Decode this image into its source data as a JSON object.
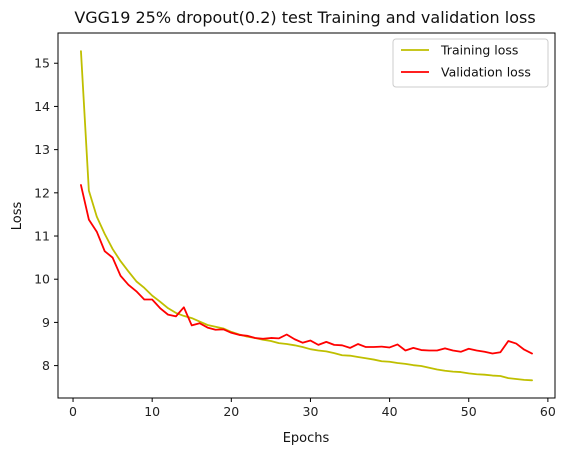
{
  "chart_data": {
    "type": "line",
    "title": "VGG19 25% dropout(0.2) test Training and validation loss",
    "xlabel": "Epochs",
    "ylabel": "Loss",
    "xlim": [
      -1.9,
      60.9
    ],
    "ylim": [
      7.25,
      15.7
    ],
    "xticks": [
      0,
      10,
      20,
      30,
      40,
      50,
      60
    ],
    "yticks": [
      8,
      9,
      10,
      11,
      12,
      13,
      14,
      15
    ],
    "grid": false,
    "legend_position": "top-right",
    "x": [
      1,
      2,
      3,
      4,
      5,
      6,
      7,
      8,
      9,
      10,
      11,
      12,
      13,
      14,
      15,
      16,
      17,
      18,
      19,
      20,
      21,
      22,
      23,
      24,
      25,
      26,
      27,
      28,
      29,
      30,
      31,
      32,
      33,
      34,
      35,
      36,
      37,
      38,
      39,
      40,
      41,
      42,
      43,
      44,
      45,
      46,
      47,
      48,
      49,
      50,
      51,
      52,
      53,
      54,
      55,
      56,
      57,
      58
    ],
    "series": [
      {
        "name": "Training loss",
        "color": "#bfbf00",
        "values": [
          15.28,
          12.05,
          11.45,
          11.05,
          10.7,
          10.42,
          10.18,
          9.95,
          9.8,
          9.62,
          9.48,
          9.33,
          9.22,
          9.15,
          9.1,
          9.02,
          8.94,
          8.9,
          8.86,
          8.78,
          8.72,
          8.67,
          8.64,
          8.6,
          8.57,
          8.52,
          8.5,
          8.47,
          8.43,
          8.38,
          8.35,
          8.33,
          8.29,
          8.24,
          8.23,
          8.2,
          8.17,
          8.14,
          8.1,
          8.09,
          8.06,
          8.04,
          8.01,
          7.99,
          7.95,
          7.91,
          7.88,
          7.86,
          7.85,
          7.82,
          7.8,
          7.79,
          7.77,
          7.76,
          7.71,
          7.69,
          7.67,
          7.66
        ]
      },
      {
        "name": "Validation loss",
        "color": "#ff0000",
        "values": [
          12.18,
          11.38,
          11.1,
          10.65,
          10.5,
          10.08,
          9.87,
          9.72,
          9.53,
          9.53,
          9.33,
          9.18,
          9.14,
          9.35,
          8.93,
          8.98,
          8.88,
          8.83,
          8.84,
          8.76,
          8.71,
          8.69,
          8.64,
          8.62,
          8.64,
          8.63,
          8.72,
          8.61,
          8.53,
          8.58,
          8.48,
          8.55,
          8.48,
          8.47,
          8.41,
          8.5,
          8.43,
          8.43,
          8.44,
          8.42,
          8.49,
          8.35,
          8.41,
          8.36,
          8.35,
          8.35,
          8.4,
          8.35,
          8.32,
          8.39,
          8.35,
          8.32,
          8.28,
          8.31,
          8.57,
          8.51,
          8.37,
          8.28
        ]
      }
    ]
  }
}
